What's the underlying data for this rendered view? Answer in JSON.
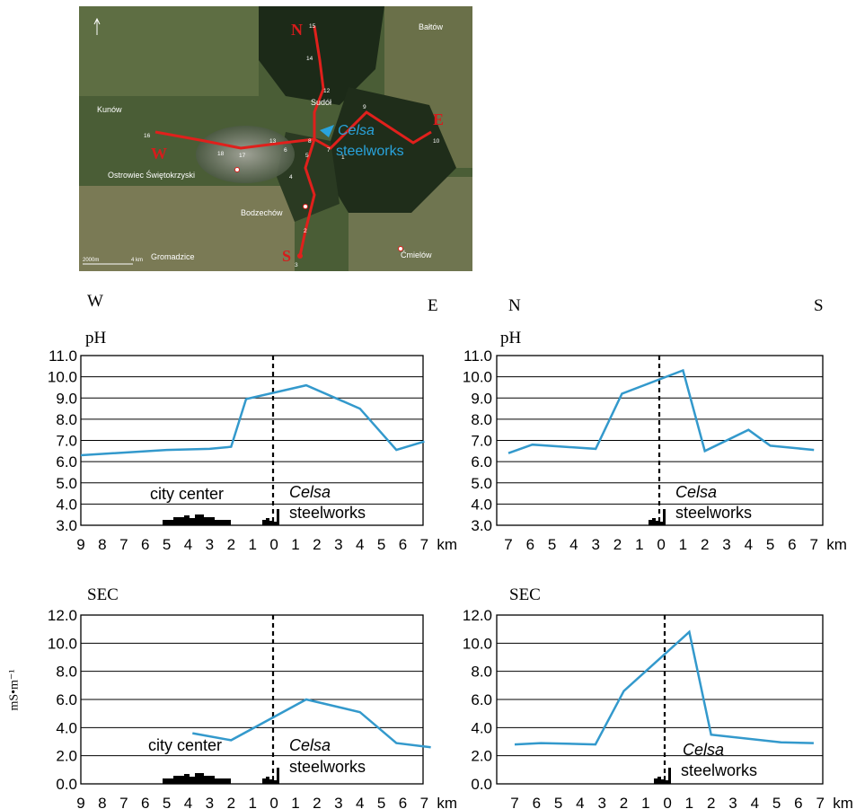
{
  "map": {
    "towns": [
      "Bałtów",
      "Kunów",
      "Sudół",
      "Ostrowiec Świętokrzyski",
      "Bodzechów",
      "Ćmielów",
      "Gromadzice"
    ],
    "celsa_label_1": "Celsa",
    "celsa_label_2": "steelworks",
    "direction_letters": [
      "N",
      "W",
      "E",
      "S"
    ],
    "point_numbers": [
      "1",
      "2",
      "3",
      "4",
      "5",
      "6",
      "7",
      "8",
      "9",
      "10",
      "12",
      "13",
      "14",
      "15",
      "16",
      "17",
      "18"
    ],
    "scale_text": "2000m",
    "scale_text_2": "4 km",
    "colors": {
      "route": "#e0201c",
      "celsa": "#29a3dc",
      "letters": "#d61c1c"
    }
  },
  "directions": {
    "west": "W",
    "east": "E",
    "north": "N",
    "south": "S"
  },
  "axis_unit": "mS•m⁻¹",
  "colors": {
    "line": "#3399cc",
    "grid": "#000000",
    "bars": "#000000"
  },
  "chart_data": [
    {
      "id": "ph_we",
      "type": "line",
      "panel_label": "pH",
      "ylim": [
        3.0,
        11.0
      ],
      "yticks": [
        "3.0",
        "4.0",
        "5.0",
        "6.0",
        "7.0",
        "8.0",
        "9.0",
        "10.0",
        "11.0"
      ],
      "xlim": [
        -9,
        7.5
      ],
      "xtick_labels": [
        "9",
        "8",
        "7",
        "6",
        "5",
        "4",
        "3",
        "2",
        "1",
        "0",
        "1",
        "2",
        "3",
        "4",
        "5",
        "6",
        "7"
      ],
      "xunit": "km",
      "x": [
        -9,
        -5,
        -3,
        -2,
        -1.3,
        1.5,
        4,
        5.7,
        7
      ],
      "y": [
        6.3,
        6.55,
        6.6,
        6.7,
        8.95,
        9.6,
        8.5,
        6.55,
        6.95
      ],
      "annotations": {
        "city": "city center",
        "celsa_1": "Celsa",
        "celsa_2": "steelworks"
      }
    },
    {
      "id": "ph_ns",
      "type": "line",
      "panel_label": "pH",
      "ylim": [
        3.0,
        11.0
      ],
      "yticks": [
        "3.0",
        "4.0",
        "5.0",
        "6.0",
        "7.0",
        "8.0",
        "9.0",
        "10.0",
        "11.0"
      ],
      "xlim": [
        -7.3,
        7
      ],
      "xtick_labels": [
        "7",
        "6",
        "5",
        "4",
        "3",
        "2",
        "1",
        "0",
        "1",
        "2",
        "3",
        "4",
        "5",
        "6",
        "7"
      ],
      "xunit": "km",
      "x": [
        -7,
        -5.9,
        -3,
        -1.8,
        1,
        2,
        4,
        5,
        7
      ],
      "y": [
        6.4,
        6.8,
        6.6,
        9.2,
        10.3,
        6.5,
        7.5,
        6.75,
        6.55
      ],
      "annotations": {
        "celsa_1": "Celsa",
        "celsa_2": "steelworks"
      }
    },
    {
      "id": "sec_we",
      "type": "line",
      "panel_label": "SEC",
      "ylim": [
        0.0,
        12.0
      ],
      "yticks": [
        "0.0",
        "2.0",
        "4.0",
        "6.0",
        "8.0",
        "10.0",
        "12.0"
      ],
      "xlim": [
        -9,
        7.5
      ],
      "xtick_labels": [
        "9",
        "8",
        "7",
        "6",
        "5",
        "4",
        "3",
        "2",
        "1",
        "0",
        "1",
        "2",
        "3",
        "4",
        "5",
        "6",
        "7"
      ],
      "xunit": "km",
      "x": [
        -3.8,
        -2,
        1.5,
        4,
        5.7,
        7.3
      ],
      "y": [
        3.6,
        3.1,
        6.0,
        5.1,
        2.9,
        2.6
      ],
      "annotations": {
        "city": "city center",
        "celsa_1": "Celsa",
        "celsa_2": "steelworks"
      }
    },
    {
      "id": "sec_ns",
      "type": "line",
      "panel_label": "SEC",
      "ylim": [
        0.0,
        12.0
      ],
      "yticks": [
        "0.0",
        "2.0",
        "4.0",
        "6.0",
        "8.0",
        "10.0",
        "12.0"
      ],
      "xlim": [
        -7.3,
        7
      ],
      "xtick_labels": [
        "7",
        "6",
        "5",
        "4",
        "3",
        "2",
        "1",
        "0",
        "1",
        "2",
        "3",
        "4",
        "5",
        "6",
        "7"
      ],
      "xunit": "km",
      "x": [
        -7,
        -5.8,
        -3.3,
        -2,
        1,
        2,
        5.2,
        6.7
      ],
      "y": [
        2.8,
        2.9,
        2.8,
        6.6,
        10.8,
        3.5,
        2.95,
        2.9
      ],
      "annotations": {
        "celsa_1": "Celsa",
        "celsa_2": "steelworks"
      }
    }
  ]
}
